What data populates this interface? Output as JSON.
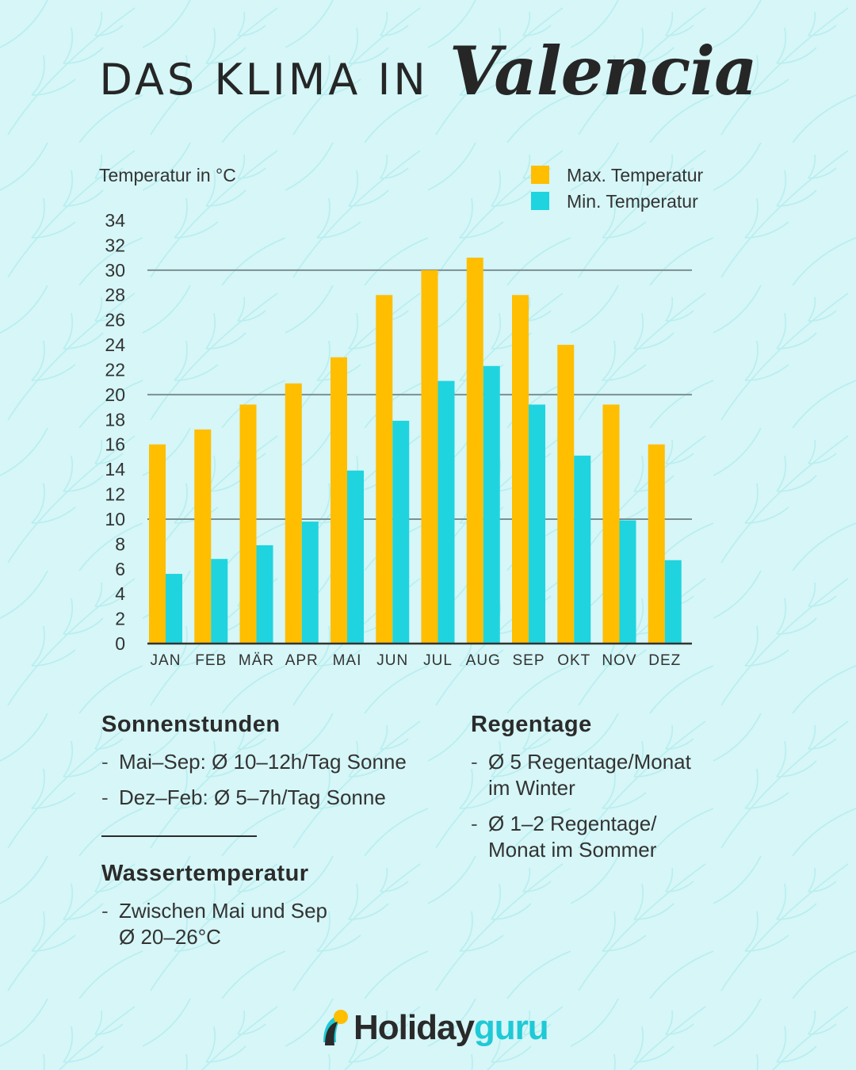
{
  "title": {
    "main": "DAS KLIMA IN",
    "script": "Valencia"
  },
  "colors": {
    "max": "#ffbe00",
    "min": "#1fd4df",
    "background": "#d6f6f7"
  },
  "chart_data": {
    "type": "bar",
    "ylabel": "Temperatur in °C",
    "ylim": [
      0,
      34
    ],
    "yticks": [
      0,
      2,
      4,
      6,
      8,
      10,
      12,
      14,
      16,
      18,
      20,
      22,
      24,
      26,
      28,
      30,
      32,
      34
    ],
    "gridlines": [
      10,
      20,
      30
    ],
    "legend_position": "top-right",
    "categories": [
      "JAN",
      "FEB",
      "MÄR",
      "APR",
      "MAI",
      "JUN",
      "JUL",
      "AUG",
      "SEP",
      "OKT",
      "NOV",
      "DEZ"
    ],
    "series": [
      {
        "name": "Max. Temperatur",
        "color": "#ffbe00",
        "values": [
          16,
          17.2,
          19.2,
          20.9,
          23,
          28,
          30,
          31,
          28,
          24,
          19.2,
          16
        ]
      },
      {
        "name": "Min. Temperatur",
        "color": "#1fd4df",
        "values": [
          5.6,
          6.8,
          7.9,
          9.8,
          13.9,
          17.9,
          21.1,
          22.3,
          19.2,
          15.1,
          9.9,
          6.7
        ]
      }
    ]
  },
  "sections": {
    "sun": {
      "title": "Sonnenstunden",
      "items": [
        "Mai–Sep: Ø 10–12h/Tag Sonne",
        "Dez–Feb: Ø 5–7h/Tag Sonne"
      ]
    },
    "water": {
      "title": "Wassertemperatur",
      "items": [
        "Zwischen Mai und Sep\nØ 20–26°C"
      ]
    },
    "rain": {
      "title": "Regentage",
      "items": [
        "Ø 5 Regentage/Monat\nim Winter",
        "Ø 1–2 Regentage/\nMonat im Sommer"
      ]
    }
  },
  "logo": {
    "part1": "Holiday",
    "part2": "guru",
    "icon": "sun-over-hill-logo-icon"
  }
}
